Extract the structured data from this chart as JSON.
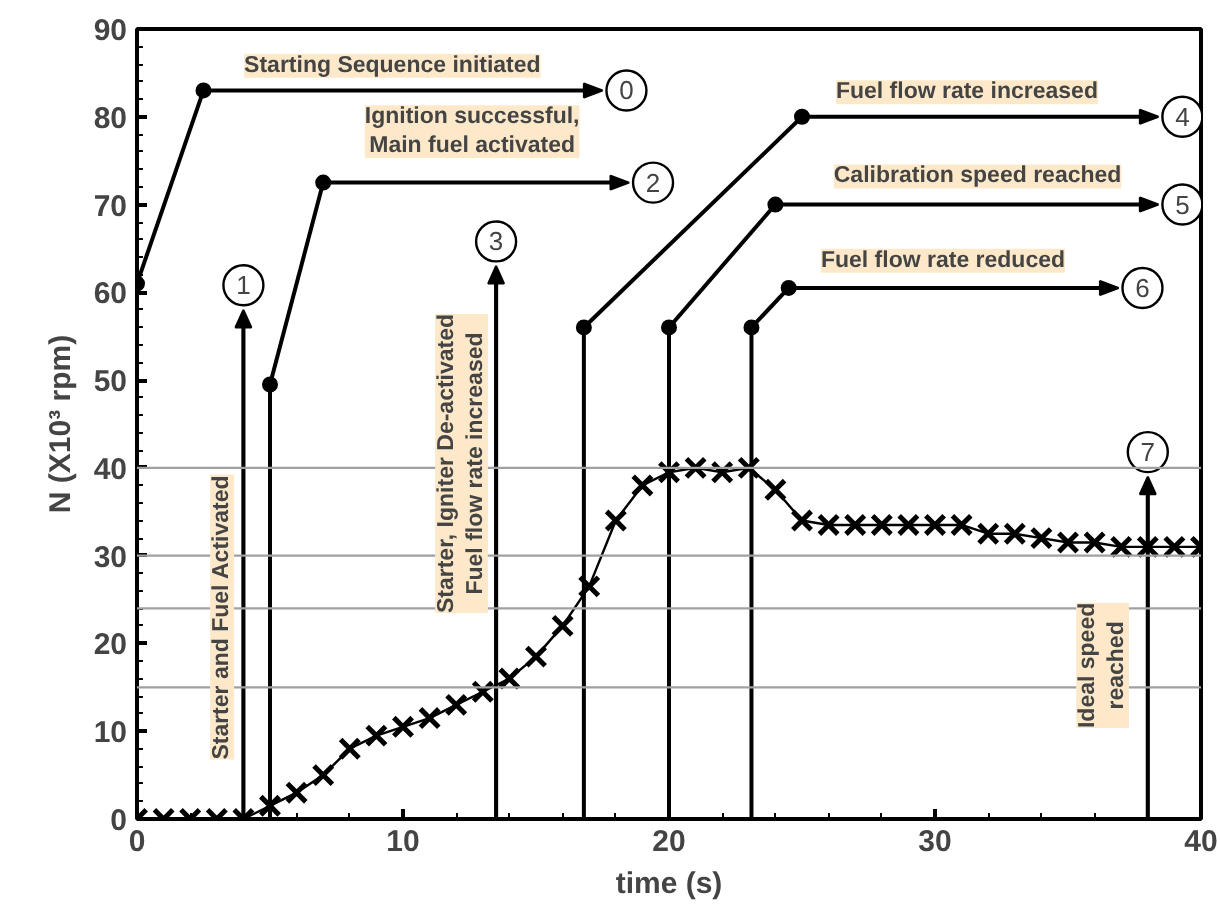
{
  "chart_data": {
    "type": "line",
    "xlabel": "time (s)",
    "ylabel": "N (X10³ rpm)",
    "x": [
      0,
      1,
      2,
      3,
      4,
      5,
      6,
      7,
      8,
      9,
      10,
      11,
      12,
      13,
      14,
      15,
      16,
      17,
      18,
      19,
      20,
      21,
      22,
      23,
      24,
      25,
      26,
      27,
      28,
      29,
      30,
      31,
      32,
      33,
      34,
      35,
      36,
      37,
      38,
      39,
      40
    ],
    "series": [
      {
        "color": "#000000",
        "values": [
          0,
          0,
          0,
          0,
          0,
          1.5,
          3,
          5,
          8,
          9.5,
          10.5,
          11.5,
          13,
          14.5,
          16,
          18.5,
          22,
          26.5,
          34,
          38,
          39.5,
          40,
          39.5,
          40,
          37.5,
          34,
          33.5,
          33.5,
          33.5,
          33.5,
          33.5,
          33.5,
          32.5,
          32.5,
          32,
          31.5,
          31.5,
          31,
          31,
          31,
          31
        ]
      }
    ],
    "marker": "cross",
    "line_style": "solid",
    "grid": false,
    "xlim": [
      0,
      40
    ],
    "xticks": [
      0,
      10,
      20,
      30,
      40
    ],
    "ylim": [
      0,
      90
    ],
    "yticks": [
      0,
      10,
      20,
      30,
      40,
      50,
      60,
      70,
      80,
      90
    ],
    "ref_lines": [
      {
        "axis": "y",
        "value": 15,
        "color": "#a0a0a0"
      },
      {
        "axis": "y",
        "value": 24,
        "color": "#a0a0a0"
      },
      {
        "axis": "y",
        "value": 30,
        "color": "#a0a0a0"
      },
      {
        "axis": "y",
        "value": 40,
        "color": "#a0a0a0"
      },
      {
        "axis": "x",
        "value": 4,
        "color": "#000000"
      },
      {
        "axis": "x",
        "value": 5,
        "color": "#000000"
      },
      {
        "axis": "x",
        "value": 13.5,
        "color": "#000000"
      },
      {
        "axis": "x",
        "value": 16.8,
        "color": "#000000"
      },
      {
        "axis": "x",
        "value": 20,
        "color": "#000000"
      },
      {
        "axis": "x",
        "value": 23.1,
        "color": "#000000"
      },
      {
        "axis": "x",
        "value": 38,
        "color": "#000000"
      }
    ],
    "annotations": [
      "Starting Sequence initiated",
      "0",
      "Starter and Fuel Activated",
      "1",
      "Ignition successful,\nMain fuel activated",
      "2",
      "Starter, Igniter De-activated\nFuel flow rate increased",
      "3",
      "Fuel flow rate increased",
      "4",
      "Calibration speed reached",
      "5",
      "Fuel flow rate reduced",
      "6",
      "Ideal speed\nreached",
      "7"
    ]
  }
}
